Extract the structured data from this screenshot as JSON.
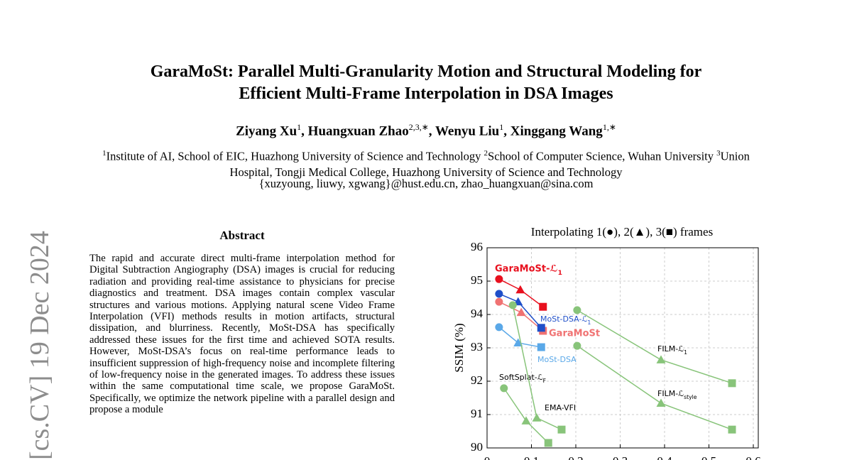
{
  "header": {
    "title_lines": [
      "GaraMoSt: Parallel Multi-Granularity Motion and Structural Modeling for",
      "Efficient Multi-Frame Interpolation in DSA Images"
    ],
    "authors": [
      {
        "name": "Ziyang Xu",
        "affil": "1"
      },
      {
        "name": "Huangxuan Zhao",
        "affil": "2,3,∗"
      },
      {
        "name": "Wenyu Liu",
        "affil": "1"
      },
      {
        "name": "Xinggang Wang",
        "affil": "1,∗"
      }
    ],
    "affiliations": [
      {
        "mark": "1",
        "text": "Institute of AI, School of EIC, Huazhong University of Science and Technology "
      },
      {
        "mark": "2",
        "text": "School of Computer Science, Wuhan University "
      },
      {
        "mark": "3",
        "text": "Union Hospital, Tongji Medical College, Huazhong University of Science and Technology"
      }
    ],
    "emails": "{xuzyoung, liuwy, xgwang}@hust.edu.cn, zhao_huangxuan@sina.com"
  },
  "arxiv_stamp": "[cs.CV]  19 Dec 2024",
  "abstract": {
    "heading": "Abstract",
    "text": "The rapid and accurate direct multi-frame interpolation method for Digital Subtraction Angiography (DSA) images is crucial for reducing radiation and providing real-time assistance to physicians for precise diagnostics and treatment. DSA images contain complex vascular structures and various motions. Applying natural scene Video Frame Interpolation (VFI) methods results in motion artifacts, structural dissipation, and blurriness. Recently, MoSt-DSA has specifically addressed these issues for the first time and achieved SOTA results. However, MoSt-DSA’s focus on real-time performance leads to insufficient suppression of high-frequency noise and incomplete filtering of low-frequency noise in the generated images. To address these issues within the same computational time scale, we propose GaraMoSt. Specifically, we optimize the network pipeline with a parallel design and propose a module"
  },
  "chart_data": {
    "type": "line",
    "title": "Interpolating 1(●), 2(▲), 3(■) frames",
    "y_label": "SSIM (%)",
    "xlim": [
      0,
      0.6
    ],
    "ylim": [
      90,
      96
    ],
    "xticks": [
      0,
      0.1,
      0.2,
      0.3,
      0.4,
      0.5,
      0.6
    ],
    "yticks": [
      90,
      91,
      92,
      93,
      94,
      95,
      96
    ],
    "grid": true,
    "series": [
      {
        "name": "GaraMoSt-ℒ1",
        "color": "#e8101e",
        "x": [
          0.027,
          0.075,
          0.126
        ],
        "values": [
          95.06,
          94.74,
          94.23
        ]
      },
      {
        "name": "GaraMoSt",
        "color": "#f07272",
        "x": [
          0.027,
          0.077,
          0.126
        ],
        "values": [
          94.38,
          94.06,
          93.51
        ]
      },
      {
        "name": "MoSt-DSA-ℒ1",
        "color": "#1f4fc9",
        "x": [
          0.027,
          0.07,
          0.122
        ],
        "values": [
          94.62,
          94.38,
          93.6
        ]
      },
      {
        "name": "MoSt-DSA",
        "color": "#5aa8e8",
        "x": [
          0.027,
          0.07,
          0.122
        ],
        "values": [
          93.62,
          93.15,
          93.02
        ]
      },
      {
        "name": "FILM-ℒ1",
        "color": "#88c47a",
        "x": [
          0.203,
          0.392,
          0.552
        ],
        "values": [
          94.13,
          92.64,
          91.94
        ]
      },
      {
        "name": "FILM-ℒstyle",
        "color": "#88c47a",
        "x": [
          0.203,
          0.392,
          0.552
        ],
        "values": [
          93.06,
          91.34,
          90.55
        ]
      },
      {
        "name": "SoftSplat-ℒF",
        "color": "#88c47a",
        "x": [
          0.038,
          0.088,
          0.138
        ],
        "values": [
          91.79,
          90.81,
          90.15
        ]
      },
      {
        "name": "EMA-VFI",
        "color": "#88c47a",
        "x": [
          0.058,
          0.112,
          0.168
        ],
        "values": [
          94.28,
          90.9,
          90.55
        ]
      }
    ]
  }
}
